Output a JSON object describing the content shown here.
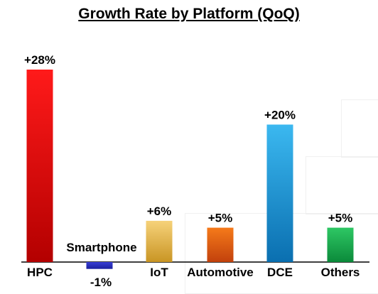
{
  "chart_data": {
    "type": "bar",
    "title": "Growth Rate by Platform (QoQ)",
    "categories": [
      "HPC",
      "Smartphone",
      "IoT",
      "Automotive",
      "DCE",
      "Others"
    ],
    "values": [
      28,
      -1,
      6,
      5,
      20,
      5
    ],
    "data_labels": [
      "+28%",
      "-1%",
      "+6%",
      "+5%",
      "+20%",
      "+5%"
    ],
    "unit": "%",
    "xlabel": "",
    "ylabel": "",
    "grid": false,
    "legend": "none",
    "colors": {
      "HPC": [
        "#ff1a1a",
        "#b30000"
      ],
      "Smartphone": [
        "#3a3fd6",
        "#1a1f9e"
      ],
      "IoT": [
        "#f6d27a",
        "#c99524"
      ],
      "Automotive": [
        "#f57a1a",
        "#c2410c"
      ],
      "DCE": [
        "#3bb8f0",
        "#0a6fb0"
      ],
      "Others": [
        "#2ec764",
        "#0b8a3a"
      ]
    }
  }
}
